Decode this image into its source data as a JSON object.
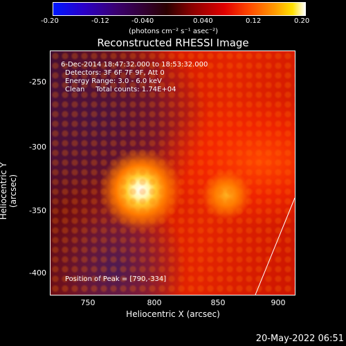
{
  "colorbar": {
    "ticks": [
      "-0.20",
      "-0.12",
      "-0.040",
      "0.040",
      "0.12",
      "0.20"
    ],
    "units": "(photons cm⁻² s⁻¹ asec⁻²)",
    "gradient_colors": [
      "#0018ff",
      "#3a0070",
      "#2b0000",
      "#e00000",
      "#ff9a00",
      "#ffffff"
    ]
  },
  "title": "Reconstructed RHESSI Image",
  "info": {
    "line1": "6-Dec-2014 18:47:32.000 to 18:53:32.000",
    "line2": "Detectors: 3F 6F 7F 9F, Att 0",
    "line3": "Energy Range: 3.0 - 6.0 keV",
    "line4": "Clean     Total counts: 1.74E+04",
    "peak": "Position of Peak = [790,-334]"
  },
  "axes": {
    "xlabel": "Heliocentric X (arcsec)",
    "ylabel": "Heliocentric Y (arcsec)",
    "xticks": [
      "750",
      "800",
      "850",
      "900"
    ],
    "yticks": [
      "-250",
      "-300",
      "-350",
      "-400"
    ]
  },
  "timestamp": "20-May-2022 06:51"
}
